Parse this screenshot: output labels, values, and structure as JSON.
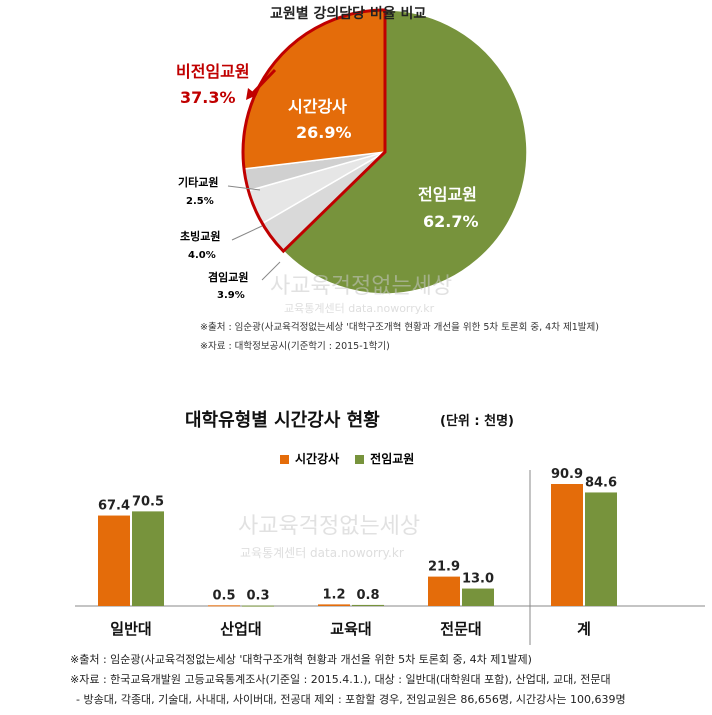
{
  "chart_data": [
    {
      "type": "pie",
      "title": "교원별 강의담당 비율 비교",
      "slices": [
        {
          "label": "전임교원",
          "value": 62.7,
          "value_label": "62.7%",
          "color": "#77933C"
        },
        {
          "label": "겸임교원",
          "value": 3.9,
          "value_label": "3.9%",
          "color": "#D9D9D9"
        },
        {
          "label": "초빙교원",
          "value": 4.0,
          "value_label": "4.0%",
          "color": "#E6E6E6"
        },
        {
          "label": "기타교원",
          "value": 2.5,
          "value_label": "2.5%",
          "color": "#D0D0D0"
        },
        {
          "label": "시간강사",
          "value": 26.9,
          "value_label": "26.9%",
          "color": "#E46C0A"
        }
      ],
      "annotation": {
        "label": "비전임교원",
        "value_label": "37.3%",
        "color": "#C00000"
      },
      "notes": [
        "※출처 : 임순광(사교육걱정없는세상 '대학구조개혁 현황과 개선을 위한 5차 토론회 중, 4차 제1발제)",
        "※자료 : 대학정보공시(기준학기 : 2015-1학기)"
      ]
    },
    {
      "type": "bar",
      "title": "대학유형별 시간강사 현황",
      "unit": "(단위 : 천명)",
      "categories": [
        "일반대",
        "산업대",
        "교육대",
        "전문대",
        "계"
      ],
      "series": [
        {
          "name": "시간강사",
          "color": "#E46C0A",
          "values": [
            67.4,
            0.5,
            1.2,
            21.9,
            90.9
          ]
        },
        {
          "name": "전임교원",
          "color": "#77933C",
          "values": [
            70.5,
            0.3,
            0.8,
            13.0,
            84.6
          ]
        }
      ],
      "ylim": [
        0,
        100
      ],
      "legend": "top-center",
      "notes": [
        "※출처 : 임순광(사교육걱정없는세상 '대학구조개혁 현황과 개선을 위한 5차 토론회 중, 4차 제1발제)",
        "※자료 : 한국교육개발원 고등교육통계조사(기준일 : 2015.4.1.), 대상 : 일반대(대학원대 포함), 산업대, 교대, 전문대",
        "- 방송대, 각종대, 기술대, 사내대, 사이버대, 전공대 제외 : 포함할 경우, 전임교원은 86,656명, 시간강사는 100,639명"
      ]
    }
  ],
  "watermark": {
    "main": "사교육걱정없는세상",
    "sub": "교육통계센터 data.noworry.kr"
  }
}
